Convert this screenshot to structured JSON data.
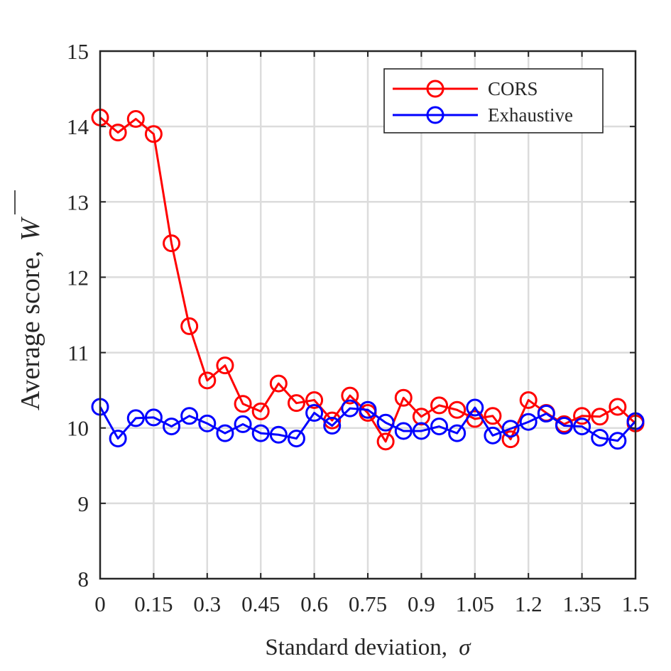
{
  "chart_data": {
    "type": "line",
    "xlabel": "Standard deviation,",
    "xlabel_symbol": "σ",
    "ylabel": "Average score,",
    "ylabel_symbol": "W",
    "xlim": [
      0,
      1.5
    ],
    "ylim": [
      8,
      15
    ],
    "x_ticks": [
      0,
      0.15,
      0.3,
      0.45,
      0.6,
      0.75,
      0.9,
      1.05,
      1.2,
      1.35,
      1.5
    ],
    "x_tick_labels": [
      "0",
      "0.15",
      "0.3",
      "0.45",
      "0.6",
      "0.75",
      "0.9",
      "1.05",
      "1.2",
      "1.35",
      "1.5"
    ],
    "y_ticks": [
      8,
      9,
      10,
      11,
      12,
      13,
      14,
      15
    ],
    "y_tick_labels": [
      "8",
      "9",
      "10",
      "11",
      "12",
      "13",
      "14",
      "15"
    ],
    "grid": true,
    "legend_position": "top-right",
    "x": [
      0,
      0.05,
      0.1,
      0.15,
      0.2,
      0.25,
      0.3,
      0.35,
      0.4,
      0.45,
      0.5,
      0.55,
      0.6,
      0.65,
      0.7,
      0.75,
      0.8,
      0.85,
      0.9,
      0.95,
      1.0,
      1.05,
      1.1,
      1.15,
      1.2,
      1.25,
      1.3,
      1.35,
      1.4,
      1.45,
      1.5
    ],
    "series": [
      {
        "name": "CORS",
        "color": "#ff0000",
        "marker": "circle",
        "values": [
          14.12,
          13.92,
          14.1,
          13.9,
          12.45,
          11.35,
          10.63,
          10.83,
          10.32,
          10.22,
          10.59,
          10.33,
          10.37,
          10.1,
          10.43,
          10.2,
          9.82,
          10.4,
          10.15,
          10.3,
          10.24,
          10.12,
          10.16,
          9.85,
          10.37,
          10.2,
          10.05,
          10.16,
          10.15,
          10.28,
          10.06
        ]
      },
      {
        "name": "Exhaustive",
        "color": "#0000ff",
        "marker": "circle",
        "values": [
          10.28,
          9.86,
          10.13,
          10.14,
          10.02,
          10.16,
          10.06,
          9.93,
          10.05,
          9.93,
          9.91,
          9.86,
          10.2,
          10.03,
          10.26,
          10.24,
          10.07,
          9.96,
          9.96,
          10.02,
          9.93,
          10.27,
          9.9,
          9.99,
          10.08,
          10.19,
          10.03,
          10.02,
          9.87,
          9.83,
          10.09
        ]
      }
    ]
  }
}
